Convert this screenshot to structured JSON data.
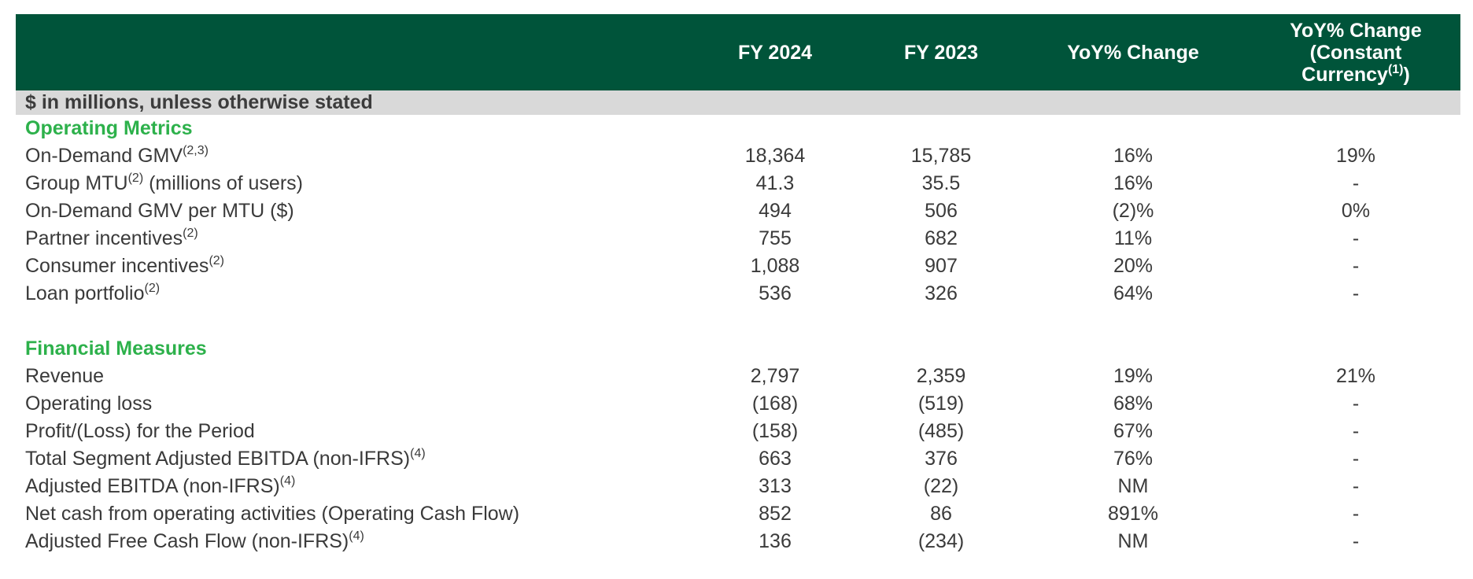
{
  "header": {
    "col_fy2024": "FY 2024",
    "col_fy2023": "FY 2023",
    "col_yoy": "YoY% Change",
    "col_yoy_cc_line1": "YoY% Change",
    "col_yoy_cc_line2": "(Constant",
    "col_yoy_cc_line3": "Currency",
    "col_yoy_cc_sup": "(1)",
    "col_yoy_cc_close": ")"
  },
  "units_note": "$ in millions, unless otherwise stated",
  "sections": [
    {
      "title": "Operating Metrics",
      "rows": [
        {
          "label": "On-Demand GMV",
          "sup": "(2,3)",
          "suffix": "",
          "fy2024": "18,364",
          "fy2023": "15,785",
          "yoy": "16%",
          "yoy_cc": "19%"
        },
        {
          "label": "Group MTU",
          "sup": "(2)",
          "suffix": " (millions of users)",
          "fy2024": "41.3",
          "fy2023": "35.5",
          "yoy": "16%",
          "yoy_cc": "-"
        },
        {
          "label": "On-Demand GMV per MTU ($)",
          "sup": "",
          "suffix": "",
          "fy2024": "494",
          "fy2023": "506",
          "yoy": "(2)%",
          "yoy_cc": "0%"
        },
        {
          "label": "Partner incentives",
          "sup": "(2)",
          "suffix": "",
          "fy2024": "755",
          "fy2023": "682",
          "yoy": "11%",
          "yoy_cc": "-"
        },
        {
          "label": "Consumer incentives",
          "sup": "(2)",
          "suffix": "",
          "fy2024": "1,088",
          "fy2023": "907",
          "yoy": "20%",
          "yoy_cc": "-"
        },
        {
          "label": "Loan portfolio",
          "sup": "(2)",
          "suffix": "",
          "fy2024": "536",
          "fy2023": "326",
          "yoy": "64%",
          "yoy_cc": "-"
        }
      ]
    },
    {
      "title": "Financial Measures",
      "rows": [
        {
          "label": "Revenue",
          "sup": "",
          "suffix": "",
          "fy2024": "2,797",
          "fy2023": "2,359",
          "yoy": "19%",
          "yoy_cc": "21%"
        },
        {
          "label": "Operating loss",
          "sup": "",
          "suffix": "",
          "fy2024": "(168)",
          "fy2023": "(519)",
          "yoy": "68%",
          "yoy_cc": "-"
        },
        {
          "label": "Profit/(Loss) for the Period",
          "sup": "",
          "suffix": "",
          "fy2024": "(158)",
          "fy2023": "(485)",
          "yoy": "67%",
          "yoy_cc": "-"
        },
        {
          "label": "Total Segment Adjusted EBITDA (non-IFRS)",
          "sup": "(4)",
          "suffix": "",
          "fy2024": "663",
          "fy2023": "376",
          "yoy": "76%",
          "yoy_cc": "-"
        },
        {
          "label": "Adjusted EBITDA (non-IFRS)",
          "sup": "(4)",
          "suffix": "",
          "fy2024": "313",
          "fy2023": "(22)",
          "yoy": "NM",
          "yoy_cc": "-"
        },
        {
          "label": "Net cash from operating activities (Operating Cash Flow)",
          "sup": "",
          "suffix": "",
          "fy2024": "852",
          "fy2023": "86",
          "yoy": "891%",
          "yoy_cc": "-"
        },
        {
          "label": "Adjusted Free Cash Flow (non-IFRS)",
          "sup": "(4)",
          "suffix": "",
          "fy2024": "136",
          "fy2023": "(234)",
          "yoy": "NM",
          "yoy_cc": "-"
        }
      ]
    }
  ],
  "colors": {
    "header_bg": "#00543a",
    "section_title": "#2db14b",
    "units_bg": "#d9d9d9"
  }
}
